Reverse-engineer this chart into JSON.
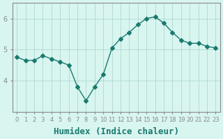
{
  "x": [
    0,
    1,
    2,
    3,
    4,
    5,
    6,
    7,
    8,
    9,
    10,
    11,
    12,
    13,
    14,
    15,
    16,
    17,
    18,
    19,
    20,
    21,
    22,
    23
  ],
  "y": [
    4.75,
    4.65,
    4.65,
    4.8,
    4.7,
    4.6,
    4.5,
    3.8,
    3.35,
    3.8,
    4.2,
    5.05,
    5.35,
    5.55,
    5.8,
    6.0,
    6.05,
    5.85,
    5.55,
    5.3,
    5.2,
    5.2,
    5.1,
    5.05
  ],
  "line_color": "#1a7a6e",
  "marker": "D",
  "marker_size": 3,
  "bg_color": "#d8f5f0",
  "grid_color": "#b0d8d0",
  "axis_color": "#888888",
  "xlabel": "Humidex (Indice chaleur)",
  "xlabel_fontsize": 9,
  "tick_fontsize": 7,
  "xtick_fontsize": 6,
  "yticks": [
    4,
    5,
    6
  ],
  "ylim": [
    3.0,
    6.5
  ],
  "xlim": [
    -0.5,
    23.5
  ]
}
